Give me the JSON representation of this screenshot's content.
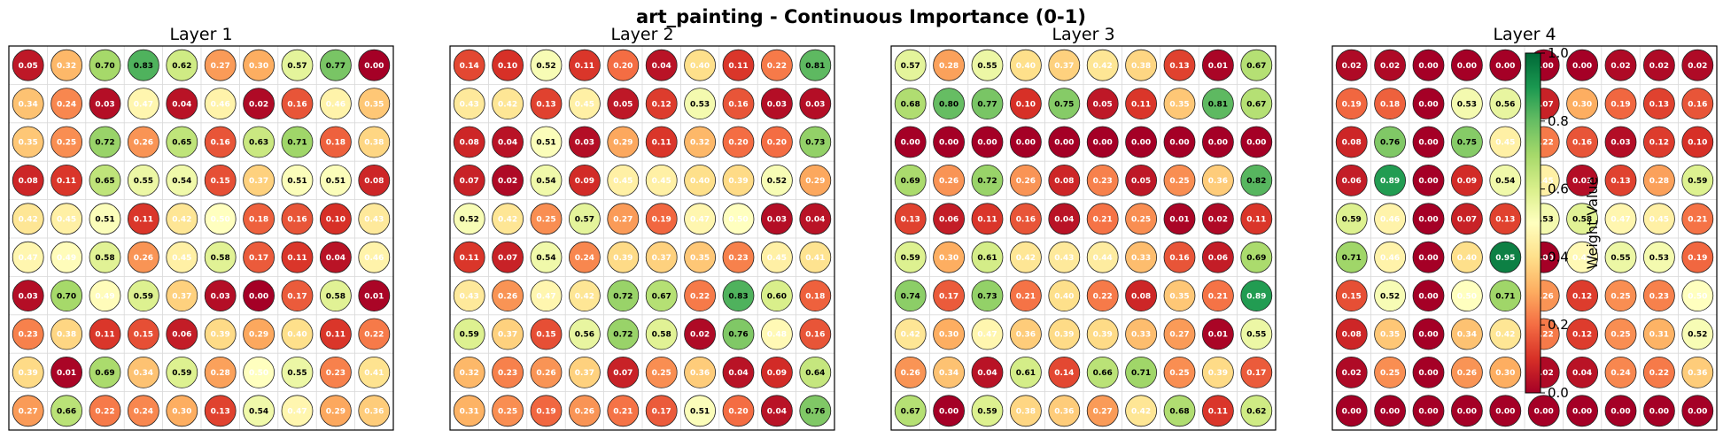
{
  "chart_data": {
    "type": "heatmap",
    "marker": "circle",
    "title": "art_painting - Continuous Importance (0-1)",
    "colormap": "RdYlGn",
    "colorbar": {
      "label": "Weight Value",
      "range": [
        0,
        1
      ],
      "ticks": [
        "0.0",
        "0.2",
        "0.4",
        "0.6",
        "0.8",
        "1.0"
      ]
    },
    "grid": true,
    "panels": [
      {
        "title": "Layer 1",
        "values": [
          [
            0.05,
            0.32,
            0.7,
            0.83,
            0.62,
            0.27,
            0.3,
            0.57,
            0.77,
            0.0
          ],
          [
            0.34,
            0.24,
            0.03,
            0.47,
            0.04,
            0.46,
            0.02,
            0.16,
            0.46,
            0.35
          ],
          [
            0.35,
            0.25,
            0.72,
            0.26,
            0.65,
            0.16,
            0.63,
            0.71,
            0.18,
            0.38
          ],
          [
            0.08,
            0.11,
            0.65,
            0.55,
            0.54,
            0.15,
            0.37,
            0.51,
            0.51,
            0.08
          ],
          [
            0.42,
            0.45,
            0.51,
            0.11,
            0.42,
            0.5,
            0.18,
            0.16,
            0.1,
            0.43
          ],
          [
            0.47,
            0.49,
            0.58,
            0.26,
            0.45,
            0.58,
            0.17,
            0.11,
            0.04,
            0.46
          ],
          [
            0.03,
            0.7,
            0.49,
            0.59,
            0.37,
            0.03,
            0.0,
            0.17,
            0.58,
            0.01
          ],
          [
            0.23,
            0.38,
            0.11,
            0.15,
            0.06,
            0.39,
            0.29,
            0.4,
            0.11,
            0.22
          ],
          [
            0.39,
            0.01,
            0.69,
            0.34,
            0.59,
            0.28,
            0.5,
            0.55,
            0.23,
            0.41
          ],
          [
            0.27,
            0.66,
            0.22,
            0.24,
            0.3,
            0.13,
            0.54,
            0.47,
            0.29,
            0.36
          ]
        ]
      },
      {
        "title": "Layer 2",
        "values": [
          [
            0.14,
            0.1,
            0.52,
            0.11,
            0.2,
            0.04,
            0.4,
            0.11,
            0.22,
            0.81
          ],
          [
            0.43,
            0.42,
            0.13,
            0.45,
            0.05,
            0.12,
            0.53,
            0.16,
            0.03,
            0.03
          ],
          [
            0.08,
            0.04,
            0.51,
            0.03,
            0.29,
            0.11,
            0.32,
            0.2,
            0.2,
            0.73
          ],
          [
            0.07,
            0.02,
            0.54,
            0.09,
            0.45,
            0.45,
            0.4,
            0.39,
            0.52,
            0.29
          ],
          [
            0.52,
            0.42,
            0.25,
            0.57,
            0.27,
            0.19,
            0.47,
            0.5,
            0.03,
            0.04
          ],
          [
            0.11,
            0.07,
            0.54,
            0.24,
            0.39,
            0.37,
            0.35,
            0.23,
            0.45,
            0.41
          ],
          [
            0.43,
            0.26,
            0.47,
            0.42,
            0.72,
            0.67,
            0.22,
            0.83,
            0.6,
            0.18
          ],
          [
            0.59,
            0.37,
            0.15,
            0.56,
            0.72,
            0.58,
            0.02,
            0.76,
            0.48,
            0.16
          ],
          [
            0.32,
            0.23,
            0.26,
            0.37,
            0.07,
            0.25,
            0.36,
            0.04,
            0.09,
            0.64
          ],
          [
            0.31,
            0.25,
            0.19,
            0.26,
            0.21,
            0.17,
            0.51,
            0.2,
            0.04,
            0.76
          ]
        ]
      },
      {
        "title": "Layer 3",
        "values": [
          [
            0.57,
            0.28,
            0.55,
            0.4,
            0.37,
            0.42,
            0.38,
            0.13,
            0.01,
            0.67
          ],
          [
            0.68,
            0.8,
            0.77,
            0.1,
            0.75,
            0.05,
            0.11,
            0.35,
            0.81,
            0.67
          ],
          [
            0.0,
            0.0,
            0.0,
            0.0,
            0.0,
            0.0,
            0.0,
            0.0,
            0.0,
            0.0
          ],
          [
            0.69,
            0.26,
            0.72,
            0.26,
            0.08,
            0.23,
            0.05,
            0.25,
            0.36,
            0.82
          ],
          [
            0.13,
            0.06,
            0.11,
            0.16,
            0.04,
            0.21,
            0.25,
            0.01,
            0.02,
            0.11
          ],
          [
            0.59,
            0.3,
            0.61,
            0.42,
            0.43,
            0.44,
            0.33,
            0.16,
            0.06,
            0.69
          ],
          [
            0.74,
            0.17,
            0.73,
            0.21,
            0.4,
            0.22,
            0.08,
            0.35,
            0.21,
            0.89
          ],
          [
            0.42,
            0.3,
            0.47,
            0.36,
            0.39,
            0.39,
            0.33,
            0.27,
            0.01,
            0.55
          ],
          [
            0.26,
            0.34,
            0.04,
            0.61,
            0.14,
            0.66,
            0.71,
            0.25,
            0.39,
            0.17
          ],
          [
            0.67,
            0.0,
            0.59,
            0.38,
            0.36,
            0.27,
            0.42,
            0.68,
            0.11,
            0.62
          ]
        ]
      },
      {
        "title": "Layer 4",
        "values": [
          [
            0.02,
            0.02,
            0.0,
            0.0,
            0.0,
            0.0,
            0.0,
            0.02,
            0.02,
            0.02
          ],
          [
            0.19,
            0.18,
            0.0,
            0.53,
            0.56,
            0.07,
            0.3,
            0.19,
            0.13,
            0.16
          ],
          [
            0.08,
            0.76,
            0.0,
            0.75,
            0.45,
            0.22,
            0.16,
            0.03,
            0.12,
            0.1
          ],
          [
            0.06,
            0.89,
            0.0,
            0.09,
            0.54,
            0.45,
            0.03,
            0.13,
            0.28,
            0.59
          ],
          [
            0.59,
            0.46,
            0.0,
            0.07,
            0.13,
            0.53,
            0.58,
            0.47,
            0.45,
            0.21
          ],
          [
            0.71,
            0.46,
            0.0,
            0.4,
            0.95,
            0.0,
            0.48,
            0.55,
            0.53,
            0.19
          ],
          [
            0.15,
            0.52,
            0.0,
            0.5,
            0.71,
            0.26,
            0.12,
            0.25,
            0.23,
            0.5
          ],
          [
            0.08,
            0.35,
            0.0,
            0.34,
            0.42,
            0.22,
            0.12,
            0.25,
            0.31,
            0.52
          ],
          [
            0.02,
            0.25,
            0.0,
            0.26,
            0.3,
            0.02,
            0.04,
            0.24,
            0.22,
            0.36
          ],
          [
            0.0,
            0.0,
            0.0,
            0.0,
            0.0,
            0.0,
            0.0,
            0.0,
            0.0,
            0.0
          ]
        ]
      }
    ]
  }
}
